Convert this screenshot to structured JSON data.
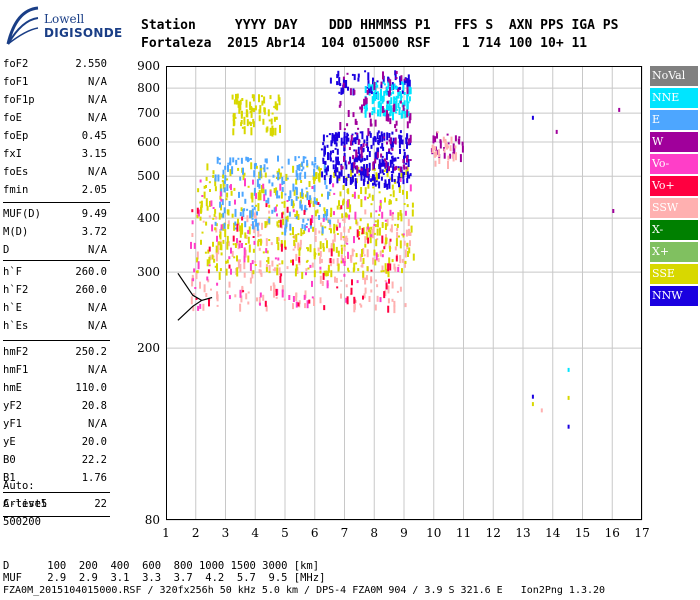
{
  "logo": {
    "line1": "Lowell",
    "line2": "DIGISONDE"
  },
  "header": {
    "labels": "Station     YYYY DAY    DDD HHMMSS P1   FFS S  AXN PPS IGA PS",
    "values": "Fortaleza  2015 Abr14  104 015000 RSF    1 714 100 10+ 11"
  },
  "params": [
    {
      "name": "foF2",
      "value": "2.550"
    },
    {
      "name": "foF1",
      "value": "N/A"
    },
    {
      "name": "foF1p",
      "value": "N/A"
    },
    {
      "name": "foE",
      "value": "N/A"
    },
    {
      "name": "foEp",
      "value": "0.45"
    },
    {
      "name": "fxI",
      "value": "3.15"
    },
    {
      "name": "foEs",
      "value": "N/A"
    },
    {
      "name": "fmin",
      "value": "2.05"
    },
    {
      "name": "MUF(D)",
      "value": "9.49"
    },
    {
      "name": "M(D)",
      "value": "3.72"
    },
    {
      "name": "D",
      "value": "N/A"
    },
    {
      "name": "h`F",
      "value": "260.0"
    },
    {
      "name": "h`F2",
      "value": "260.0"
    },
    {
      "name": "h`E",
      "value": "N/A"
    },
    {
      "name": "h`Es",
      "value": "N/A"
    },
    {
      "name": "hmF2",
      "value": "250.2"
    },
    {
      "name": "hmF1",
      "value": "N/A"
    },
    {
      "name": "hmE",
      "value": "110.0"
    },
    {
      "name": "yF2",
      "value": "20.8"
    },
    {
      "name": "yF1",
      "value": "N/A"
    },
    {
      "name": "yE",
      "value": "20.0"
    },
    {
      "name": "B0",
      "value": "22.2"
    },
    {
      "name": "B1",
      "value": "1.76"
    },
    {
      "name": "C-level",
      "value": "22"
    }
  ],
  "autoscale": {
    "line1": "Auto:",
    "line2": "Artist5",
    "line3": "500200"
  },
  "legend": [
    {
      "label": "NoVal",
      "color": "#808080"
    },
    {
      "label": "NNE",
      "color": "#00e5ff"
    },
    {
      "label": "E",
      "color": "#4da6ff"
    },
    {
      "label": "W",
      "color": "#a0009b"
    },
    {
      "label": "Vo-",
      "color": "#ff3ec8"
    },
    {
      "label": "Vo+",
      "color": "#ff0040"
    },
    {
      "label": "SSW",
      "color": "#ffb0b0"
    },
    {
      "label": "X-",
      "color": "#008000"
    },
    {
      "label": "X+",
      "color": "#80c060"
    },
    {
      "label": "SSE",
      "color": "#d8d800"
    },
    {
      "label": "NNW",
      "color": "#1a00e0"
    }
  ],
  "chart_data": {
    "type": "scatter",
    "title": "",
    "xlabel": "",
    "ylabel": "",
    "xlim": [
      1,
      17
    ],
    "ylim": [
      80,
      900
    ],
    "x_ticks": [
      1,
      2,
      3,
      4,
      5,
      6,
      7,
      8,
      9,
      10,
      11,
      12,
      13,
      14,
      15,
      16,
      17
    ],
    "y_ticks": [
      80,
      200,
      300,
      400,
      500,
      600,
      700,
      800,
      900
    ],
    "y_scale": "log",
    "grid": true,
    "clusters": [
      {
        "series": "SSW",
        "x": [
          1.8,
          9.2
        ],
        "y": [
          250,
          420
        ],
        "n": 260
      },
      {
        "series": "SSE",
        "x": [
          2.0,
          9.3
        ],
        "y": [
          300,
          540
        ],
        "n": 420
      },
      {
        "series": "E",
        "x": [
          2.6,
          6.5
        ],
        "y": [
          380,
          560
        ],
        "n": 160
      },
      {
        "series": "NNW",
        "x": [
          6.2,
          9.2
        ],
        "y": [
          480,
          640
        ],
        "n": 260
      },
      {
        "series": "NNW",
        "x": [
          6.5,
          9.2
        ],
        "y": [
          780,
          880
        ],
        "n": 60
      },
      {
        "series": "NNE",
        "x": [
          7.6,
          9.2
        ],
        "y": [
          700,
          830
        ],
        "n": 110
      },
      {
        "series": "W",
        "x": [
          6.8,
          9.2
        ],
        "y": [
          520,
          880
        ],
        "n": 110
      },
      {
        "series": "Vo-",
        "x": [
          1.8,
          9.2
        ],
        "y": [
          250,
          500
        ],
        "n": 110
      },
      {
        "series": "Vo+",
        "x": [
          1.8,
          8.8
        ],
        "y": [
          250,
          460
        ],
        "n": 60
      },
      {
        "series": "SSE",
        "x": [
          3.2,
          4.8
        ],
        "y": [
          640,
          780
        ],
        "n": 80
      },
      {
        "series": "W",
        "x": [
          9.9,
          11.0
        ],
        "y": [
          560,
          640
        ],
        "n": 25
      },
      {
        "series": "SSW",
        "x": [
          9.9,
          10.8
        ],
        "y": [
          540,
          640
        ],
        "n": 25
      }
    ],
    "points": [
      {
        "series": "W",
        "x": 16.2,
        "y": 720
      },
      {
        "series": "W",
        "x": 16.0,
        "y": 420
      },
      {
        "series": "NNW",
        "x": 13.3,
        "y": 690
      },
      {
        "series": "W",
        "x": 14.1,
        "y": 640
      },
      {
        "series": "NNW",
        "x": 13.3,
        "y": 156
      },
      {
        "series": "SSE",
        "x": 13.3,
        "y": 150
      },
      {
        "series": "SSW",
        "x": 13.6,
        "y": 145
      },
      {
        "series": "NNE",
        "x": 14.5,
        "y": 180
      },
      {
        "series": "SSE",
        "x": 14.5,
        "y": 155
      },
      {
        "series": "NNW",
        "x": 14.5,
        "y": 133
      }
    ],
    "trace_x": [
      1.4,
      1.9,
      2.2,
      2.55
    ],
    "trace_y": [
      232,
      250,
      258,
      262
    ],
    "trace2_x": [
      1.4,
      1.9,
      2.2
    ],
    "trace2_y": [
      298,
      265,
      258
    ]
  },
  "bottom": {
    "d_row": "D      100  200  400  600  800 1000 1500 3000 [km]",
    "muf_row": "MUF    2.9  2.9  3.1  3.3  3.7  4.2  5.7  9.5 [MHz]",
    "footer": "FZA0M_2015104015000.RSF / 320fx256h 50 kHz 5.0 km / DPS-4 FZA0M 904 / 3.9 S 321.6 E   Ion2Png 1.3.20"
  }
}
